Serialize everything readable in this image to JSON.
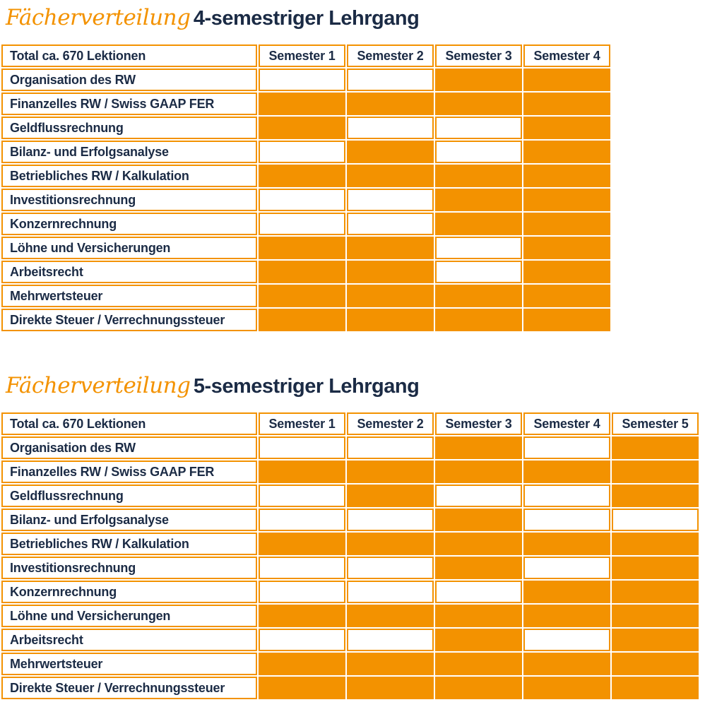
{
  "colors": {
    "orange": "#f39200",
    "navy": "#1b2b45",
    "cell_empty": "#ffffff"
  },
  "tables": [
    {
      "title_italic": "Fächerverteilung",
      "title_bold": "4-semestriger Lehrgang",
      "header_label": "Total ca. 670 Lektionen",
      "semesters": [
        "Semester 1",
        "Semester 2",
        "Semester 3",
        "Semester 4"
      ],
      "rows": [
        {
          "label": "Organisation des RW",
          "cells": [
            0,
            0,
            1,
            1
          ]
        },
        {
          "label": "Finanzelles RW / Swiss GAAP FER",
          "cells": [
            1,
            1,
            1,
            1
          ]
        },
        {
          "label": "Geldflussrechnung",
          "cells": [
            1,
            0,
            0,
            1
          ]
        },
        {
          "label": "Bilanz- und Erfolgsanalyse",
          "cells": [
            0,
            1,
            0,
            1
          ]
        },
        {
          "label": "Betriebliches RW / Kalkulation",
          "cells": [
            1,
            1,
            1,
            1
          ]
        },
        {
          "label": "Investitionsrechnung",
          "cells": [
            0,
            0,
            1,
            1
          ]
        },
        {
          "label": "Konzernrechnung",
          "cells": [
            0,
            0,
            1,
            1
          ]
        },
        {
          "label": "Löhne und Versicherungen",
          "cells": [
            1,
            1,
            0,
            1
          ]
        },
        {
          "label": "Arbeitsrecht",
          "cells": [
            1,
            1,
            0,
            1
          ]
        },
        {
          "label": "Mehrwertsteuer",
          "cells": [
            1,
            1,
            1,
            1
          ]
        },
        {
          "label": "Direkte Steuer / Verrechnungssteuer",
          "cells": [
            1,
            1,
            1,
            1
          ]
        }
      ]
    },
    {
      "title_italic": "Fächerverteilung",
      "title_bold": "5-semestriger Lehrgang",
      "header_label": "Total ca. 670 Lektionen",
      "semesters": [
        "Semester 1",
        "Semester 2",
        "Semester 3",
        "Semester 4",
        "Semester 5"
      ],
      "rows": [
        {
          "label": "Organisation des RW",
          "cells": [
            0,
            0,
            1,
            0,
            1
          ]
        },
        {
          "label": "Finanzelles RW / Swiss GAAP FER",
          "cells": [
            1,
            1,
            1,
            1,
            1
          ]
        },
        {
          "label": "Geldflussrechnung",
          "cells": [
            0,
            1,
            0,
            0,
            1
          ]
        },
        {
          "label": "Bilanz- und Erfolgsanalyse",
          "cells": [
            0,
            0,
            1,
            0,
            0
          ]
        },
        {
          "label": "Betriebliches RW / Kalkulation",
          "cells": [
            1,
            1,
            1,
            1,
            1
          ]
        },
        {
          "label": "Investitionsrechnung",
          "cells": [
            0,
            0,
            1,
            0,
            1
          ]
        },
        {
          "label": "Konzernrechnung",
          "cells": [
            0,
            0,
            0,
            1,
            1
          ]
        },
        {
          "label": "Löhne und Versicherungen",
          "cells": [
            1,
            1,
            1,
            1,
            1
          ]
        },
        {
          "label": "Arbeitsrecht",
          "cells": [
            0,
            0,
            1,
            0,
            1
          ]
        },
        {
          "label": "Mehrwertsteuer",
          "cells": [
            1,
            1,
            1,
            1,
            1
          ]
        },
        {
          "label": "Direkte Steuer / Verrechnungssteuer",
          "cells": [
            1,
            1,
            1,
            1,
            1
          ]
        }
      ]
    }
  ]
}
